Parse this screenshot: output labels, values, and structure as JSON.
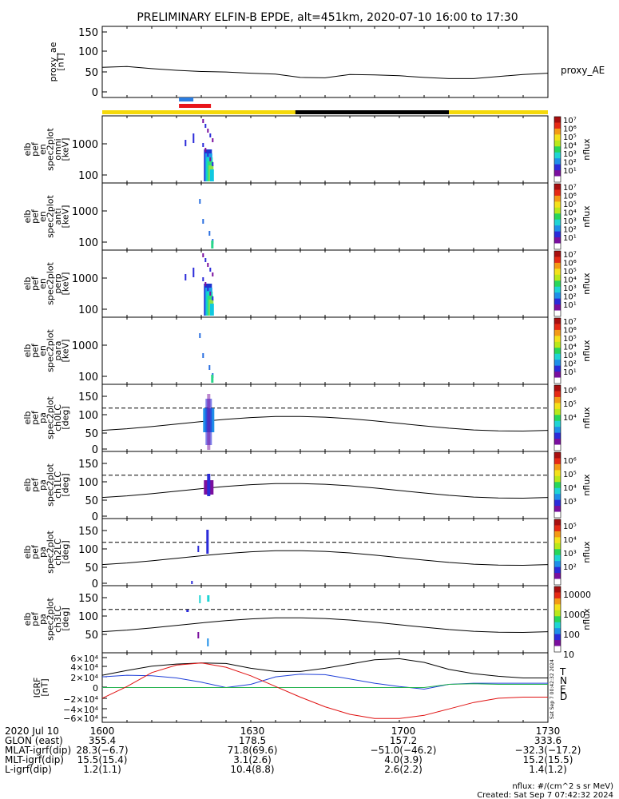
{
  "title": "PRELIMINARY ELFIN-B EPDE, alt=451km, 2020-07-10 16:00 to 17:30",
  "colors": {
    "bar_day": "#f5d90a",
    "bar_night": "#000000",
    "marker_blue": "#2a7de1",
    "marker_red": "#e8151b",
    "grf_T": "#000000",
    "grf_N": "#1f3fd8",
    "grf_E": "#22b14c",
    "grf_D": "#e01010"
  },
  "footer": {
    "units": "nflux: #/(cm^2 s sr MeV)",
    "created": "Created: Sat Sep  7 07:42:32 2024",
    "vertical_stamp": "Sat Sep  7 00:42:32 2024"
  },
  "chart_data": [
    {
      "id": "proxy_ae",
      "type": "line",
      "ylabel": [
        "proxy_ae",
        "[nT]"
      ],
      "right_label": "proxy_AE",
      "yticks": [
        "150",
        "100",
        "50",
        "0"
      ],
      "ylim": [
        -10,
        160
      ],
      "x_minutes": [
        0,
        5,
        10,
        15,
        20,
        25,
        30,
        35,
        40,
        45,
        50,
        55,
        60,
        65,
        70,
        75,
        80,
        85,
        90
      ],
      "values": [
        62,
        64,
        59,
        55,
        52,
        51,
        48,
        46,
        38,
        37,
        45,
        44,
        42,
        38,
        35,
        35,
        40,
        45,
        48
      ]
    },
    {
      "id": "omni",
      "type": "heatmap",
      "ylabel": [
        "elb",
        "pef",
        "en",
        "spec2plot",
        "omni",
        "[keV]"
      ],
      "yticks": [
        "1000",
        "100"
      ],
      "cbar_ticks": [
        "10⁷",
        "10⁶",
        "10⁵",
        "10⁴",
        "10³",
        "10²",
        "10¹"
      ],
      "cbar_label": "nflux",
      "scale": "log"
    },
    {
      "id": "anti",
      "type": "heatmap",
      "ylabel": [
        "elb",
        "pef",
        "en",
        "spec2plot",
        "anti",
        "[keV]"
      ],
      "yticks": [
        "1000",
        "100"
      ],
      "cbar_ticks": [
        "10⁷",
        "10⁶",
        "10⁵",
        "10⁴",
        "10³",
        "10²",
        "10¹"
      ],
      "cbar_label": "nflux",
      "scale": "log"
    },
    {
      "id": "perp",
      "type": "heatmap",
      "ylabel": [
        "elb",
        "pef",
        "en",
        "spec2plot",
        "perp",
        "[keV]"
      ],
      "yticks": [
        "1000",
        "100"
      ],
      "cbar_ticks": [
        "10⁷",
        "10⁶",
        "10⁵",
        "10⁴",
        "10³",
        "10²",
        "10¹"
      ],
      "cbar_label": "nflux",
      "scale": "log"
    },
    {
      "id": "para",
      "type": "heatmap",
      "ylabel": [
        "elb",
        "pef",
        "en",
        "spec2plot",
        "para",
        "[keV]"
      ],
      "yticks": [
        "1000",
        "100"
      ],
      "cbar_ticks": [
        "10⁷",
        "10⁶",
        "10⁵",
        "10⁴",
        "10³",
        "10²",
        "10¹"
      ],
      "cbar_label": "nflux",
      "scale": "log"
    },
    {
      "id": "ch0LC",
      "type": "heatmap",
      "ylabel": [
        "elb",
        "pef",
        "pa",
        "spec2plot",
        "ch0LC",
        "[deg]"
      ],
      "yticks": [
        "150",
        "100",
        "50",
        "0"
      ],
      "cbar_ticks": [
        "10⁶",
        "10⁵",
        "10⁴"
      ],
      "cbar_label": "nflux",
      "ylim": [
        0,
        180
      ]
    },
    {
      "id": "ch1LC",
      "type": "heatmap",
      "ylabel": [
        "elb",
        "pef",
        "pa",
        "spec2plot",
        "ch1LC",
        "[deg]"
      ],
      "yticks": [
        "150",
        "100",
        "50",
        "0"
      ],
      "cbar_ticks": [
        "10⁶",
        "10⁵",
        "10⁴",
        "10³"
      ],
      "cbar_label": "nflux",
      "ylim": [
        0,
        180
      ]
    },
    {
      "id": "ch2LC",
      "type": "heatmap",
      "ylabel": [
        "elb",
        "pef",
        "pa",
        "spec2plot",
        "ch2LC",
        "[deg]"
      ],
      "yticks": [
        "150",
        "100",
        "50",
        "0"
      ],
      "cbar_ticks": [
        "10⁵",
        "10⁴",
        "10³",
        "10²"
      ],
      "cbar_label": "nflux",
      "ylim": [
        0,
        180
      ]
    },
    {
      "id": "ch3LC",
      "type": "heatmap",
      "ylabel": [
        "elb",
        "pef",
        "pa",
        "spec2plot",
        "ch3LC",
        "[deg]"
      ],
      "yticks": [
        "150",
        "100",
        "50"
      ],
      "cbar_ticks": [
        "10000",
        "1000",
        "100",
        "10"
      ],
      "cbar_label": "nflux",
      "ylim": [
        0,
        180
      ]
    },
    {
      "id": "igrf",
      "type": "line",
      "ylabel": [
        "IGRF",
        "[nT]"
      ],
      "yticks": [
        "6×10⁴",
        "4×10⁴",
        "2×10⁴",
        "0",
        "−2×10⁴",
        "−4×10⁴",
        "−6×10⁴"
      ],
      "ylim": [
        -65000,
        65000
      ],
      "legend": [
        "T",
        "N",
        "E",
        "D"
      ],
      "x_minutes": [
        0,
        5,
        10,
        15,
        20,
        25,
        30,
        35,
        40,
        45,
        50,
        55,
        60,
        65,
        70,
        75,
        80,
        85,
        90
      ],
      "series": [
        {
          "name": "T",
          "values": [
            23000,
            32000,
            40000,
            44000,
            46000,
            45000,
            36000,
            30000,
            30000,
            36000,
            44000,
            52000,
            54000,
            47000,
            34000,
            26000,
            21000,
            18000,
            18000
          ]
        },
        {
          "name": "N",
          "values": [
            20000,
            23000,
            22000,
            18000,
            10000,
            0,
            6000,
            20000,
            25000,
            24000,
            16000,
            8000,
            2000,
            -3000,
            6000,
            8000,
            8000,
            8000,
            8000
          ]
        },
        {
          "name": "E",
          "values": [
            0,
            0,
            0,
            0,
            0,
            0,
            0,
            0,
            0,
            0,
            0,
            0,
            0,
            0,
            6000,
            7000,
            6000,
            6000,
            6000
          ]
        },
        {
          "name": "D",
          "values": [
            -20000,
            2000,
            28000,
            42000,
            46000,
            38000,
            22000,
            2000,
            -18000,
            -36000,
            -50000,
            -58000,
            -58000,
            -52000,
            -40000,
            -28000,
            -20000,
            -18000,
            -18000
          ]
        }
      ]
    }
  ],
  "axis_rows": [
    {
      "label": "2020 Jul 10",
      "values": [
        "1600",
        "1630",
        "1700",
        "1730"
      ]
    },
    {
      "label": "GLON (east)",
      "values": [
        "355.4",
        "178.5",
        "157.2",
        "333.6"
      ]
    },
    {
      "label": "MLAT-igrf(dip)",
      "values": [
        "28.3(−6.7)",
        "71.8(69.6)",
        "−51.0(−46.2)",
        "−32.3(−17.2)"
      ]
    },
    {
      "label": "MLT-igrf(dip)",
      "values": [
        "15.5(15.4)",
        "3.1(2.6)",
        "4.0(3.9)",
        "15.2(15.5)"
      ]
    },
    {
      "label": "L-igrf(dip)",
      "values": [
        "1.2(1.1)",
        "10.4(8.8)",
        "2.6(2.2)",
        "1.4(1.2)"
      ]
    }
  ]
}
